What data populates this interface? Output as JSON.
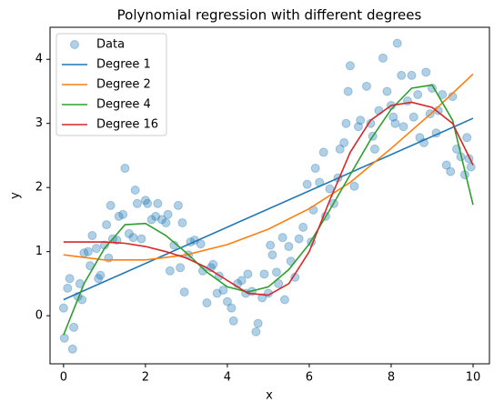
{
  "chart_data": {
    "type": "scatter",
    "title": "Polynomial regression with different degrees",
    "x_label": "x",
    "y_label": "y",
    "xlim": [
      -0.33,
      10.4
    ],
    "ylim": [
      -0.75,
      4.5
    ],
    "xticks": [
      0,
      2,
      4,
      6,
      8,
      10
    ],
    "yticks": [
      0,
      1,
      2,
      3,
      4
    ],
    "legend": "upper left",
    "series": [
      {
        "name": "Data",
        "type": "scatter",
        "color": "#1f77b4",
        "x": [
          0,
          0.02,
          0.1,
          0.15,
          0.22,
          0.25,
          0.35,
          0.4,
          0.45,
          0.5,
          0.6,
          0.65,
          0.7,
          0.8,
          0.85,
          0.9,
          1.0,
          1.05,
          1.1,
          1.15,
          1.2,
          1.3,
          1.35,
          1.45,
          1.5,
          1.6,
          1.7,
          1.75,
          1.8,
          1.9,
          2.0,
          2.05,
          2.15,
          2.25,
          2.3,
          2.4,
          2.5,
          2.55,
          2.6,
          2.7,
          2.8,
          2.85,
          2.9,
          2.95,
          3.05,
          3.1,
          3.2,
          3.35,
          3.4,
          3.5,
          3.6,
          3.65,
          3.75,
          3.8,
          3.9,
          4.0,
          4.1,
          4.15,
          4.25,
          4.35,
          4.45,
          4.5,
          4.6,
          4.7,
          4.75,
          4.85,
          4.9,
          5.0,
          5.05,
          5.1,
          5.2,
          5.25,
          5.35,
          5.4,
          5.5,
          5.55,
          5.65,
          5.75,
          5.85,
          5.95,
          6.05,
          6.1,
          6.15,
          6.25,
          6.35,
          6.4,
          6.5,
          6.6,
          6.7,
          6.75,
          6.85,
          6.9,
          6.95,
          7.0,
          7.1,
          7.2,
          7.25,
          7.4,
          7.5,
          7.55,
          7.6,
          7.7,
          7.8,
          7.9,
          8.0,
          8.05,
          8.1,
          8.15,
          8.25,
          8.3,
          8.4,
          8.5,
          8.55,
          8.65,
          8.7,
          8.8,
          8.85,
          8.95,
          9.0,
          9.1,
          9.15,
          9.25,
          9.35,
          9.45,
          9.5,
          9.6,
          9.7,
          9.8,
          9.85,
          9.9,
          9.95
        ],
        "values": [
          0.12,
          -0.35,
          0.43,
          0.58,
          -0.52,
          -0.18,
          0.3,
          0.5,
          0.25,
          0.98,
          1.0,
          0.78,
          1.25,
          1.05,
          0.58,
          0.63,
          1.1,
          1.42,
          0.9,
          1.72,
          1.2,
          1.18,
          1.55,
          1.58,
          2.3,
          1.28,
          1.22,
          1.96,
          1.75,
          1.2,
          1.8,
          1.75,
          1.5,
          1.55,
          1.75,
          1.5,
          1.45,
          1.58,
          0.7,
          1.1,
          1.72,
          0.75,
          1.45,
          0.37,
          0.95,
          1.15,
          1.18,
          1.12,
          0.7,
          0.2,
          0.75,
          0.8,
          0.35,
          0.62,
          0.4,
          0.22,
          0.12,
          -0.08,
          0.5,
          0.55,
          0.35,
          0.65,
          0.38,
          -0.25,
          -0.12,
          0.28,
          0.65,
          0.35,
          1.1,
          0.95,
          0.68,
          0.5,
          1.22,
          0.25,
          1.08,
          0.85,
          0.6,
          1.2,
          1.38,
          2.05,
          1.15,
          1.65,
          2.3,
          2.08,
          2.55,
          1.55,
          1.98,
          1.75,
          2.15,
          2.6,
          2.7,
          3.0,
          3.5,
          3.9,
          2.02,
          2.95,
          3.05,
          3.58,
          3.0,
          2.8,
          2.6,
          3.2,
          4.02,
          3.5,
          3.28,
          3.1,
          3.0,
          4.25,
          3.75,
          2.95,
          3.35,
          3.75,
          3.1,
          3.45,
          2.78,
          2.7,
          3.8,
          3.15,
          3.55,
          2.85,
          3.2,
          3.45,
          2.35,
          2.25,
          3.42,
          2.6,
          2.48,
          2.2,
          2.78,
          2.45,
          2.32
        ]
      },
      {
        "name": "Degree 1",
        "type": "line",
        "color": "#1f77b4",
        "x": [
          0,
          10
        ],
        "values": [
          0.25,
          3.08
        ]
      },
      {
        "name": "Degree 2",
        "type": "line",
        "color": "#ff7f0e",
        "x": [
          0,
          1,
          2,
          3,
          4,
          5,
          6,
          7,
          8,
          9,
          10
        ],
        "values": [
          0.95,
          0.87,
          0.87,
          0.95,
          1.11,
          1.35,
          1.67,
          2.08,
          2.61,
          3.17,
          3.77
        ]
      },
      {
        "name": "Degree 4",
        "type": "line",
        "color": "#2ca02c",
        "x": [
          0,
          0.5,
          1,
          1.5,
          2,
          2.5,
          3,
          3.5,
          4,
          4.5,
          5,
          5.5,
          6,
          6.5,
          7,
          7.5,
          8,
          8.5,
          9,
          9.5,
          10
        ],
        "values": [
          -0.3,
          0.5,
          1.05,
          1.42,
          1.44,
          1.25,
          0.98,
          0.68,
          0.45,
          0.37,
          0.45,
          0.72,
          1.12,
          1.65,
          2.2,
          2.75,
          3.22,
          3.55,
          3.6,
          3.05,
          1.73
        ]
      },
      {
        "name": "Degree 16",
        "type": "line",
        "color": "#d62728",
        "x": [
          0,
          0.5,
          1,
          1.5,
          2,
          2.5,
          3,
          3.5,
          4,
          4.5,
          5,
          5.5,
          6,
          6.5,
          7,
          7.5,
          8,
          8.5,
          9,
          9.5,
          10
        ],
        "values": [
          1.15,
          1.15,
          1.15,
          1.13,
          1.08,
          1.0,
          0.9,
          0.75,
          0.55,
          0.35,
          0.32,
          0.5,
          1.0,
          1.8,
          2.55,
          3.05,
          3.28,
          3.33,
          3.25,
          3.0,
          2.35
        ]
      }
    ]
  }
}
